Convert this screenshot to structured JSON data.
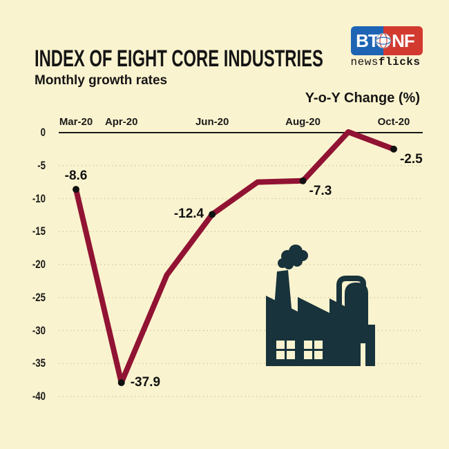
{
  "page": {
    "background": "#FAF3CF"
  },
  "header": {
    "title": "INDEX OF EIGHT CORE INDUSTRIES",
    "subtitle": "Monthly growth rates",
    "axis_title": "Y-o-Y Change (%)"
  },
  "logo": {
    "left_text": "BT",
    "right_text": "NF",
    "sub_light": "news",
    "sub_bold": "flicks",
    "blue": "#1D64B5",
    "red": "#D23A30"
  },
  "chart_data": {
    "type": "line",
    "title": "INDEX OF EIGHT CORE INDUSTRIES",
    "subtitle": "Monthly growth rates",
    "ylabel": "Y-o-Y Change (%)",
    "ylim": [
      -40,
      0
    ],
    "y_ticks": [
      0,
      -5,
      -10,
      -15,
      -20,
      -25,
      -30,
      -35,
      -40
    ],
    "x_tick_labels": [
      "Mar-20",
      "Apr-20",
      "Jun-20",
      "Aug-20",
      "Oct-20"
    ],
    "x_tick_indices": [
      0,
      1,
      3,
      5,
      7
    ],
    "grid": "dotted-horizontal",
    "line_color": "#911333",
    "dot_color": "#111111",
    "grid_color": "#CCC4A4",
    "axis_color": "#1A1A1A",
    "points": [
      {
        "month": "Mar-20",
        "value": -8.6,
        "label": "-8.6",
        "label_pos": "above"
      },
      {
        "month": "Apr-20",
        "value": -37.9,
        "label": "-37.9",
        "label_pos": "right"
      },
      {
        "month": "May-20",
        "value": -21.6
      },
      {
        "month": "Jun-20",
        "value": -12.4,
        "label": "-12.4",
        "label_pos": "left"
      },
      {
        "month": "Jul-20",
        "value": -7.5
      },
      {
        "month": "Aug-20",
        "value": -7.3,
        "label": "-7.3",
        "label_pos": "below-right"
      },
      {
        "month": "Sep-20",
        "value": 0.1
      },
      {
        "month": "Oct-20",
        "value": -2.5,
        "label": "-2.5",
        "label_pos": "below-right"
      }
    ]
  },
  "icon": {
    "factory_color": "#18333B"
  }
}
